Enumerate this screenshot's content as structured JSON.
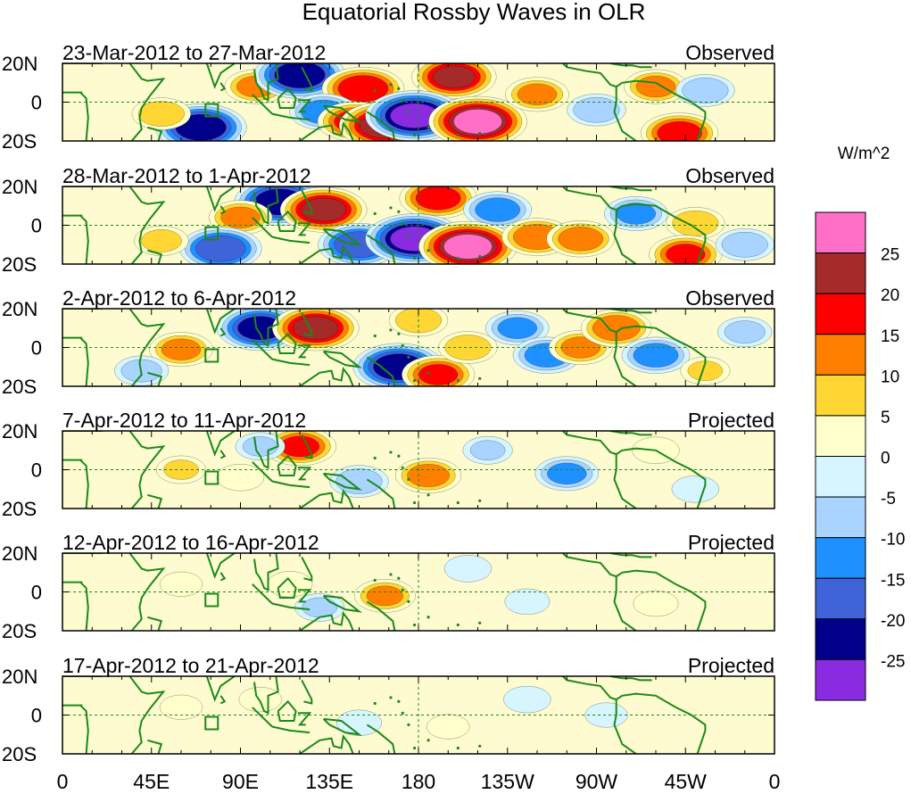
{
  "chart_data": {
    "type": "heatmap",
    "title": "Equatorial Rossby Waves in OLR",
    "units_label": "W/m^2",
    "lon_ticks": [
      "0",
      "45E",
      "90E",
      "135E",
      "180",
      "135W",
      "90W",
      "45W",
      "0"
    ],
    "lat_ticks": [
      "20N",
      "0",
      "20S"
    ],
    "lon_range": [
      0,
      360
    ],
    "lat_range": [
      -20,
      20
    ],
    "colorbar": {
      "levels": [
        "25",
        "20",
        "15",
        "10",
        "5",
        "0",
        "-5",
        "-10",
        "-15",
        "-20",
        "-25"
      ],
      "colors": [
        "#ff6ec7",
        "#a52a2a",
        "#ff0000",
        "#ff7f00",
        "#ffd633",
        "#ffffcc",
        "#d6f5ff",
        "#a8d4ff",
        "#1e90ff",
        "#3f63d9",
        "#00008b",
        "#8a2be2"
      ]
    },
    "panels": [
      {
        "period": "23-Mar-2012 to 27-Mar-2012",
        "status": "Observed",
        "anomalies": [
          {
            "lon": 98,
            "lat": 8,
            "value": 12
          },
          {
            "lon": 120,
            "lat": 14,
            "value": -24
          },
          {
            "lon": 152,
            "lat": 7,
            "value": 20
          },
          {
            "lon": 198,
            "lat": 13,
            "value": 21
          },
          {
            "lon": 132,
            "lat": -5,
            "value": -14
          },
          {
            "lon": 148,
            "lat": -10,
            "value": 17
          },
          {
            "lon": 163,
            "lat": -12,
            "value": 24
          },
          {
            "lon": 178,
            "lat": -7,
            "value": -27
          },
          {
            "lon": 210,
            "lat": -10,
            "value": 27
          },
          {
            "lon": 70,
            "lat": -13,
            "value": -24
          },
          {
            "lon": 50,
            "lat": -6,
            "value": 10
          },
          {
            "lon": 240,
            "lat": 4,
            "value": 12
          },
          {
            "lon": 300,
            "lat": 8,
            "value": 12
          },
          {
            "lon": 312,
            "lat": -16,
            "value": 18
          },
          {
            "lon": 270,
            "lat": -4,
            "value": -10
          },
          {
            "lon": 325,
            "lat": 6,
            "value": -10
          }
        ]
      },
      {
        "period": "28-Mar-2012 to 1-Apr-2012",
        "status": "Observed",
        "anomalies": [
          {
            "lon": 110,
            "lat": 12,
            "value": -24
          },
          {
            "lon": 132,
            "lat": 8,
            "value": 22
          },
          {
            "lon": 190,
            "lat": 14,
            "value": 18
          },
          {
            "lon": 220,
            "lat": 8,
            "value": -14
          },
          {
            "lon": 90,
            "lat": 4,
            "value": 12
          },
          {
            "lon": 150,
            "lat": -10,
            "value": -20
          },
          {
            "lon": 178,
            "lat": -7,
            "value": -27
          },
          {
            "lon": 205,
            "lat": -11,
            "value": 27
          },
          {
            "lon": 240,
            "lat": -6,
            "value": 15
          },
          {
            "lon": 262,
            "lat": -7,
            "value": 14
          },
          {
            "lon": 80,
            "lat": -12,
            "value": -20
          },
          {
            "lon": 290,
            "lat": 6,
            "value": -12
          },
          {
            "lon": 320,
            "lat": 1,
            "value": 10
          },
          {
            "lon": 315,
            "lat": -15,
            "value": 16
          },
          {
            "lon": 345,
            "lat": -10,
            "value": -10
          },
          {
            "lon": 50,
            "lat": -8,
            "value": 8
          }
        ]
      },
      {
        "period": "2-Apr-2012 to 6-Apr-2012",
        "status": "Observed",
        "anomalies": [
          {
            "lon": 100,
            "lat": 10,
            "value": -22
          },
          {
            "lon": 128,
            "lat": 10,
            "value": 22
          },
          {
            "lon": 170,
            "lat": -10,
            "value": -24
          },
          {
            "lon": 190,
            "lat": -14,
            "value": 16
          },
          {
            "lon": 205,
            "lat": 0,
            "value": 10
          },
          {
            "lon": 180,
            "lat": 14,
            "value": 10
          },
          {
            "lon": 230,
            "lat": 10,
            "value": -12
          },
          {
            "lon": 245,
            "lat": -4,
            "value": -14
          },
          {
            "lon": 262,
            "lat": 0,
            "value": 12
          },
          {
            "lon": 280,
            "lat": 10,
            "value": 15
          },
          {
            "lon": 300,
            "lat": -4,
            "value": -14
          },
          {
            "lon": 60,
            "lat": -1,
            "value": 12
          },
          {
            "lon": 325,
            "lat": -12,
            "value": 6
          },
          {
            "lon": 40,
            "lat": -12,
            "value": -8
          },
          {
            "lon": 345,
            "lat": 8,
            "value": -8
          }
        ]
      },
      {
        "period": "7-Apr-2012 to 11-Apr-2012",
        "status": "Projected",
        "anomalies": [
          {
            "lon": 120,
            "lat": 12,
            "value": 16
          },
          {
            "lon": 185,
            "lat": -3,
            "value": 13
          },
          {
            "lon": 255,
            "lat": -2,
            "value": -12
          },
          {
            "lon": 150,
            "lat": -6,
            "value": -10
          },
          {
            "lon": 60,
            "lat": 0,
            "value": 6
          },
          {
            "lon": 90,
            "lat": -4,
            "value": 5
          },
          {
            "lon": 215,
            "lat": 10,
            "value": -6
          },
          {
            "lon": 300,
            "lat": 10,
            "value": 5
          },
          {
            "lon": 320,
            "lat": -10,
            "value": -5
          },
          {
            "lon": 100,
            "lat": 12,
            "value": -6
          }
        ]
      },
      {
        "period": "12-Apr-2012 to 16-Apr-2012",
        "status": "Projected",
        "anomalies": [
          {
            "lon": 163,
            "lat": -2,
            "value": 11
          },
          {
            "lon": 115,
            "lat": 4,
            "value": 4
          },
          {
            "lon": 130,
            "lat": -8,
            "value": -6
          },
          {
            "lon": 205,
            "lat": 12,
            "value": -5
          },
          {
            "lon": 235,
            "lat": -5,
            "value": -4
          },
          {
            "lon": 60,
            "lat": 4,
            "value": 3
          },
          {
            "lon": 300,
            "lat": -6,
            "value": 4
          }
        ]
      },
      {
        "period": "17-Apr-2012 to 21-Apr-2012",
        "status": "Projected",
        "anomalies": [
          {
            "lon": 100,
            "lat": 8,
            "value": 3
          },
          {
            "lon": 150,
            "lat": -4,
            "value": -4
          },
          {
            "lon": 235,
            "lat": 8,
            "value": -5
          },
          {
            "lon": 275,
            "lat": 0,
            "value": -3
          },
          {
            "lon": 60,
            "lat": 4,
            "value": 3
          },
          {
            "lon": 195,
            "lat": -6,
            "value": 3
          }
        ]
      }
    ]
  }
}
